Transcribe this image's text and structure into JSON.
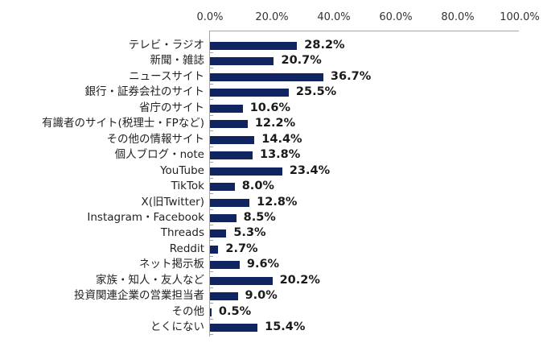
{
  "chart_data": {
    "type": "bar",
    "orientation": "horizontal",
    "title": "",
    "xlabel": "",
    "ylabel": "",
    "xlim": [
      0,
      100
    ],
    "x_ticks": [
      "0.0%",
      "20.0%",
      "40.0%",
      "60.0%",
      "80.0%",
      "100.0%"
    ],
    "grid": false,
    "legend": null,
    "bar_color": "#0f2460",
    "categories": [
      "テレビ・ラジオ",
      "新聞・雑誌",
      "ニュースサイト",
      "銀行・証券会社のサイト",
      "省庁のサイト",
      "有識者のサイト(税理士・FPなど)",
      "その他の情報サイト",
      "個人ブログ・note",
      "YouTube",
      "TikTok",
      "X(旧Twitter)",
      "Instagram・Facebook",
      "Threads",
      "Reddit",
      "ネット掲示板",
      "家族・知人・友人など",
      "投資関連企業の営業担当者",
      "その他",
      "とくにない"
    ],
    "values": [
      28.2,
      20.7,
      36.7,
      25.5,
      10.6,
      12.2,
      14.4,
      13.8,
      23.4,
      8.0,
      12.8,
      8.5,
      5.3,
      2.7,
      9.6,
      20.2,
      9.0,
      0.5,
      15.4
    ],
    "value_labels": [
      "28.2%",
      "20.7%",
      "36.7%",
      "25.5%",
      "10.6%",
      "12.2%",
      "14.4%",
      "13.8%",
      "23.4%",
      "8.0%",
      "12.8%",
      "8.5%",
      "5.3%",
      "2.7%",
      "9.6%",
      "20.2%",
      "9.0%",
      "0.5%",
      "15.4%"
    ]
  }
}
